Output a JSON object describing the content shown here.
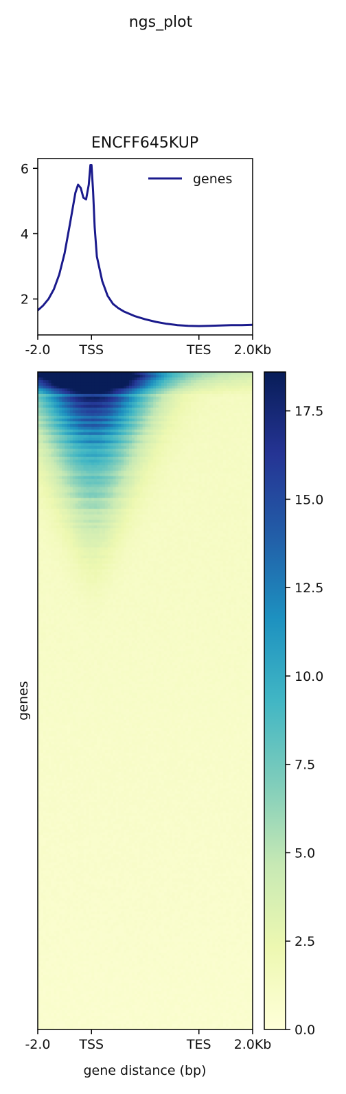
{
  "suptitle": "ngs_plot",
  "colors": {
    "profile_line": "#1a1a8c",
    "heat_low": "#ffffd9",
    "heat_mid": "#41b6c4",
    "heat_high": "#081d58"
  },
  "chart_data": [
    {
      "type": "line",
      "title": "ENCFF645KUP",
      "xlabel": "",
      "ylabel": "",
      "x_ticks": [
        {
          "label": "-2.0",
          "pos": 0
        },
        {
          "label": "TSS",
          "pos": 1
        },
        {
          "label": "TES",
          "pos": 3
        },
        {
          "label": "2.0Kb",
          "pos": 4
        }
      ],
      "xlim": [
        0,
        4
      ],
      "ylim": [
        0.9,
        6.3
      ],
      "y_ticks": [
        2,
        4,
        6
      ],
      "legend": {
        "label": "genes",
        "placement": "top-right"
      },
      "series": [
        {
          "name": "genes",
          "x": [
            0,
            0.1,
            0.2,
            0.3,
            0.4,
            0.5,
            0.6,
            0.7,
            0.75,
            0.8,
            0.85,
            0.9,
            0.95,
            0.98,
            1.0,
            1.03,
            1.06,
            1.1,
            1.2,
            1.3,
            1.4,
            1.5,
            1.6,
            1.8,
            2.0,
            2.2,
            2.4,
            2.6,
            2.8,
            3.0,
            3.2,
            3.4,
            3.6,
            3.8,
            4.0
          ],
          "y": [
            1.65,
            1.8,
            2.0,
            2.3,
            2.75,
            3.4,
            4.3,
            5.25,
            5.5,
            5.4,
            5.1,
            5.05,
            5.5,
            6.1,
            6.1,
            5.3,
            4.2,
            3.3,
            2.55,
            2.1,
            1.85,
            1.72,
            1.62,
            1.48,
            1.38,
            1.3,
            1.24,
            1.2,
            1.18,
            1.17,
            1.18,
            1.19,
            1.2,
            1.2,
            1.21
          ]
        }
      ]
    },
    {
      "type": "heatmap",
      "xlabel": "gene distance (bp)",
      "ylabel": "genes",
      "x_ticks": [
        {
          "label": "-2.0",
          "pos": 0
        },
        {
          "label": "TSS",
          "pos": 1
        },
        {
          "label": "TES",
          "pos": 3
        },
        {
          "label": "2.0Kb",
          "pos": 4
        }
      ],
      "colorbar": {
        "min": 0,
        "max": 18.6,
        "ticks": [
          "0.0",
          "2.5",
          "5.0",
          "7.5",
          "10.0",
          "12.5",
          "15.0",
          "17.5"
        ]
      },
      "signal_summary": {
        "tss_peak_max": 18,
        "background": 1.2,
        "enriched_fraction_of_genes": 0.4
      }
    }
  ]
}
